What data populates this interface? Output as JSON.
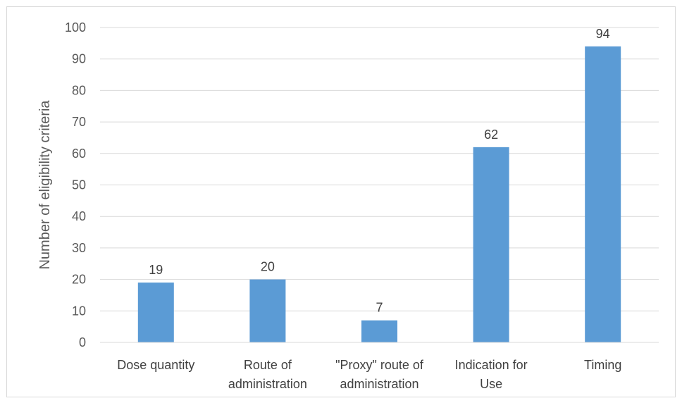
{
  "chart_data": {
    "type": "bar",
    "title": "",
    "xlabel": "",
    "ylabel": "Number of eligibility criteria",
    "categories": [
      [
        "Dose quantity"
      ],
      [
        "Route of",
        "administration"
      ],
      [
        "\"Proxy\" route of",
        "administration"
      ],
      [
        "Indication for",
        "Use"
      ],
      [
        "Timing"
      ]
    ],
    "values": [
      19,
      20,
      7,
      62,
      94
    ],
    "data_labels": [
      "19",
      "20",
      "7",
      "62",
      "94"
    ],
    "ylim": [
      0,
      100
    ],
    "yticks": [
      "0",
      "10",
      "20",
      "30",
      "40",
      "50",
      "60",
      "70",
      "80",
      "90",
      "100"
    ],
    "grid": true,
    "legend": "none",
    "bar_color": "#5b9bd5",
    "grid_color": "#d9d9d9"
  }
}
